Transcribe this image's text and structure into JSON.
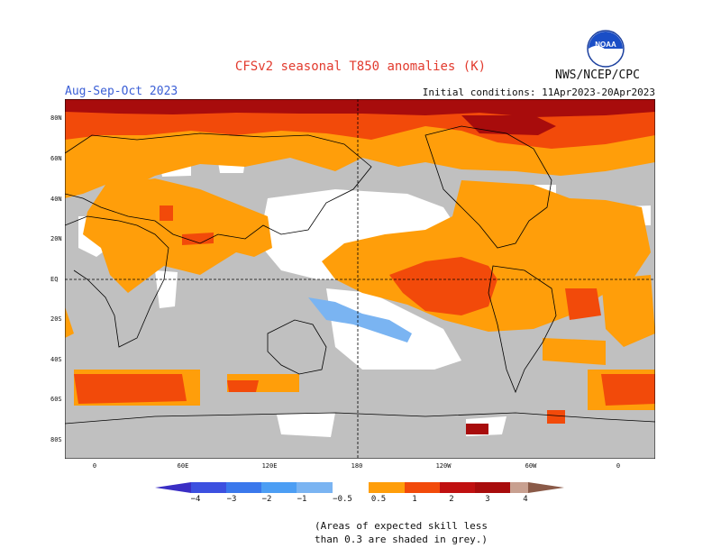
{
  "header": {
    "title": "CFSv2 seasonal T850 anomalies (K)",
    "period": "Aug-Sep-Oct 2023",
    "initial_conditions": "Initial conditions: 11Apr2023-20Apr2023",
    "agency": "NWS/NCEP/CPC",
    "logo_text": "NOAA"
  },
  "map": {
    "lat_labels": [
      "80N",
      "60N",
      "40N",
      "20N",
      "EQ",
      "20S",
      "40S",
      "60S",
      "80S"
    ],
    "lon_labels": [
      "0",
      "60E",
      "120E",
      "180",
      "120W",
      "60W",
      "0"
    ],
    "colors": {
      "skill_low_grey": "#c0c0c0",
      "no_signal": "#ffffff",
      "warm_0_5_1": "#ff9e0a",
      "warm_1_2": "#f24a0a",
      "warm_2_3": "#a80c0c",
      "cool_0_5_1": "#7ab4f2",
      "coast": "#000000"
    }
  },
  "colorbar": {
    "ticks": [
      "−4",
      "−3",
      "−2",
      "−1",
      "−0.5",
      "0.5",
      "1",
      "2",
      "3",
      "4"
    ],
    "colors": [
      "#3a2ec4",
      "#3c50e0",
      "#3a78ec",
      "#4c9ef4",
      "#7ab4f2",
      "#ffffff",
      "#ff9e0a",
      "#f24a0a",
      "#a80c0c",
      "#6e0a0a",
      "#c8a090",
      "#8a5a48"
    ]
  },
  "footnote": {
    "line1": "(Areas of expected skill less",
    "line2": "than 0.3 are shaded in grey.)"
  }
}
